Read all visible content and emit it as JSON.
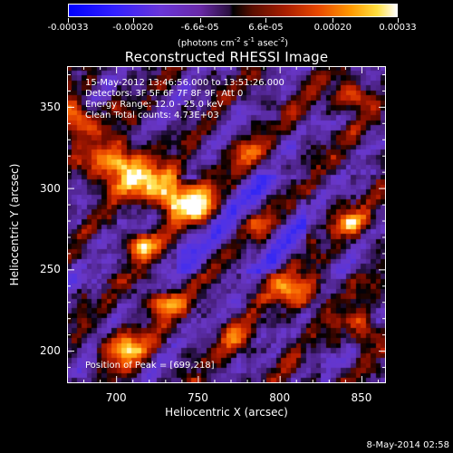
{
  "colorbar": {
    "ticks": [
      "-0.00033",
      "-0.00020",
      "-6.6e-05",
      "6.6e-05",
      "0.00020",
      "0.00033"
    ],
    "tick_values": [
      -0.00033,
      -0.0002,
      -6.6e-05,
      6.6e-05,
      0.0002,
      0.00033
    ],
    "range": [
      -0.00033,
      0.00033
    ],
    "units_main": "(photons cm",
    "units_exp1": "-2",
    "units_mid": " s",
    "units_exp2": "-1",
    "units_mid2": " asec",
    "units_exp3": "-2",
    "units_end": ")"
  },
  "info": {
    "line1": "15-May-2012 13:46:56.000 to 13:51:26.000",
    "line2": "Detectors: 3F 5F 6F 7F 8F 9F, Att 0",
    "line3": "Energy Range: 12.0 - 25.0 keV",
    "line4": "Clean     Total counts: 4.73E+03",
    "peak": "Position of Peak = [699,218]"
  },
  "timestamp": "8-May-2014 02:58",
  "colors": {
    "background": "#000000",
    "foreground": "#ffffff"
  },
  "chart_data": {
    "type": "heatmap",
    "title": "Reconstructed RHESSI Image",
    "xlabel": "Heliocentric X (arcsec)",
    "ylabel": "Heliocentric Y (arcsec)",
    "xlim": [
      670,
      865
    ],
    "ylim": [
      180,
      375
    ],
    "x_ticks": [
      700,
      750,
      800,
      850
    ],
    "y_ticks": [
      200,
      250,
      300,
      350
    ],
    "x_tick_labels": [
      "700",
      "750",
      "800",
      "850"
    ],
    "y_tick_labels": [
      "200",
      "250",
      "300",
      "350"
    ],
    "colorscale": "blue-purple-black-red-orange-yellow-white",
    "value_range": [
      -0.00033,
      0.00033
    ],
    "peak_position": [
      699,
      218
    ]
  }
}
